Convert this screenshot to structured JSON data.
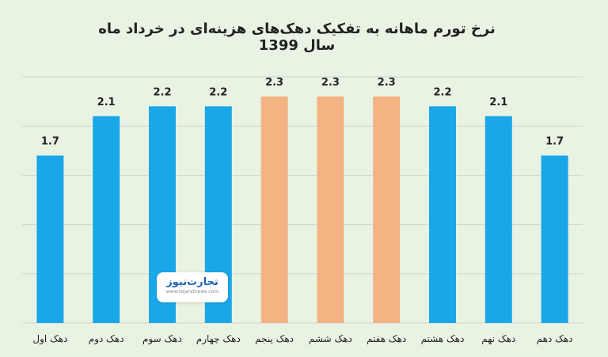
{
  "chart_data": {
    "type": "bar",
    "title": "نرخ تورم ماهانه به تفکیک دهک‌های هزینه‌ای در خرداد ماه سال 1399",
    "categories": [
      "دهک اول",
      "دهک دوم",
      "دهک سوم",
      "دهک چهارم",
      "دهک پنجم",
      "دهک ششم",
      "دهک هفتم",
      "دهک هشتم",
      "دهک نهم",
      "دهک دهم"
    ],
    "values": [
      1.7,
      2.1,
      2.2,
      2.2,
      2.3,
      2.3,
      2.3,
      2.2,
      2.1,
      1.7
    ],
    "value_labels": [
      "1.7",
      "2.1",
      "2.2",
      "2.2",
      "2.3",
      "2.3",
      "2.3",
      "2.2",
      "2.1",
      "1.7"
    ],
    "highlighted": [
      false,
      false,
      false,
      false,
      true,
      true,
      true,
      false,
      false,
      false
    ],
    "colors": {
      "default": "#1aa7e8",
      "highlight": "#f3b383",
      "grid": "#cfd6cc",
      "label": "#222222"
    },
    "ylim": [
      0,
      2.5
    ],
    "grid": true,
    "xlabel": "",
    "ylabel": ""
  },
  "watermark": {
    "name": "تجارت‌نیوز",
    "site": "www.tejaratnews.com"
  }
}
